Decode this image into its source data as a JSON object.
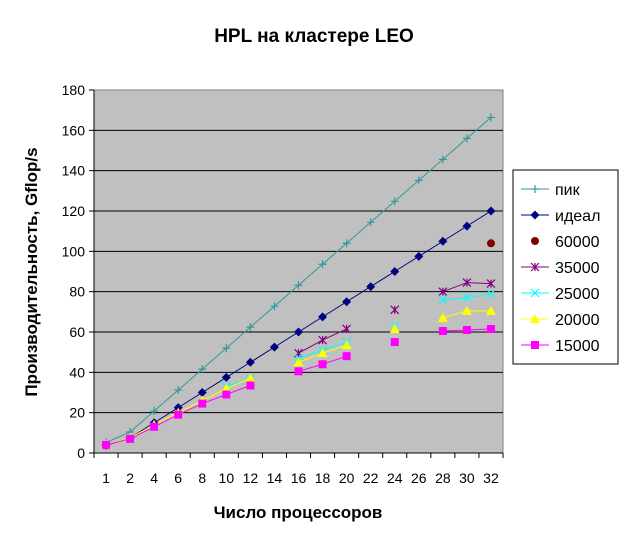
{
  "chart_data": {
    "type": "line",
    "title": "HPL на кластере LEO",
    "xlabel": "Число процессоров",
    "ylabel": "Производительность, Gflop/s",
    "x_categories": [
      "1",
      "2",
      "4",
      "6",
      "8",
      "10",
      "12",
      "14",
      "16",
      "18",
      "20",
      "22",
      "24",
      "26",
      "28",
      "30",
      "32"
    ],
    "ylim": [
      0,
      180
    ],
    "yticks": [
      0,
      20,
      40,
      60,
      80,
      100,
      120,
      140,
      160,
      180
    ],
    "grid": true,
    "legend_position": "right",
    "plot_background": "#c0c0c0",
    "series": [
      {
        "name": "пик",
        "color": "#339999",
        "marker": "plus",
        "line": true,
        "x": [
          1,
          2,
          4,
          6,
          8,
          10,
          12,
          14,
          16,
          18,
          20,
          22,
          24,
          26,
          28,
          30,
          32
        ],
        "y": [
          5.2,
          10.4,
          20.8,
          31.2,
          41.6,
          52,
          62.4,
          72.8,
          83.2,
          93.6,
          104,
          114.4,
          124.8,
          135.2,
          145.6,
          156,
          166.4
        ]
      },
      {
        "name": "идеал",
        "color": "#000080",
        "marker": "diamond",
        "line": true,
        "x": [
          1,
          2,
          4,
          6,
          8,
          10,
          12,
          14,
          16,
          18,
          20,
          22,
          24,
          26,
          28,
          30,
          32
        ],
        "y": [
          3.8,
          7.5,
          15,
          22.5,
          30,
          37.5,
          45,
          52.5,
          60,
          67.5,
          75,
          82.5,
          90,
          97.5,
          105,
          112.5,
          120
        ]
      },
      {
        "name": "60000",
        "color": "#800000",
        "marker": "circle",
        "line": false,
        "x": [
          32
        ],
        "y": [
          104
        ]
      },
      {
        "name": "35000",
        "color": "#800080",
        "marker": "star",
        "line": true,
        "x": [
          16,
          18,
          20,
          24,
          28,
          30,
          32
        ],
        "y": [
          49.5,
          56,
          61.5,
          71,
          80,
          84.5,
          84
        ]
      },
      {
        "name": "25000",
        "color": "#00ffff",
        "marker": "x",
        "line": true,
        "x": [
          10,
          12,
          16,
          18,
          20,
          24,
          28,
          30,
          32
        ],
        "y": [
          33,
          37,
          47,
          51,
          55,
          63,
          76,
          77,
          79
        ]
      },
      {
        "name": "20000",
        "color": "#ffff00",
        "marker": "triangle",
        "line": true,
        "x": [
          1,
          2,
          4,
          6,
          8,
          10,
          12,
          16,
          18,
          20,
          24,
          28,
          30,
          32
        ],
        "y": [
          4,
          7.5,
          14,
          20,
          26,
          32,
          37,
          45,
          49.5,
          53.5,
          61.5,
          67,
          70.5,
          70.5
        ]
      },
      {
        "name": "15000",
        "color": "#ff00ff",
        "marker": "square",
        "line": true,
        "x": [
          1,
          2,
          4,
          6,
          8,
          10,
          12,
          16,
          18,
          20,
          24,
          28,
          30,
          32
        ],
        "y": [
          4,
          7,
          13,
          19,
          24.5,
          29,
          33.5,
          40.5,
          44,
          48,
          55,
          60.5,
          61,
          61.5
        ]
      }
    ],
    "line_breaks": [
      {
        "series": "35000",
        "after_x": 20
      },
      {
        "series": "35000",
        "after_x": 24
      },
      {
        "series": "25000",
        "after_x": 12
      },
      {
        "series": "25000",
        "after_x": 20
      },
      {
        "series": "25000",
        "after_x": 24
      },
      {
        "series": "20000",
        "after_x": 12
      },
      {
        "series": "20000",
        "after_x": 20
      },
      {
        "series": "20000",
        "after_x": 24
      },
      {
        "series": "15000",
        "after_x": 12
      },
      {
        "series": "15000",
        "after_x": 20
      },
      {
        "series": "15000",
        "after_x": 24
      }
    ]
  }
}
